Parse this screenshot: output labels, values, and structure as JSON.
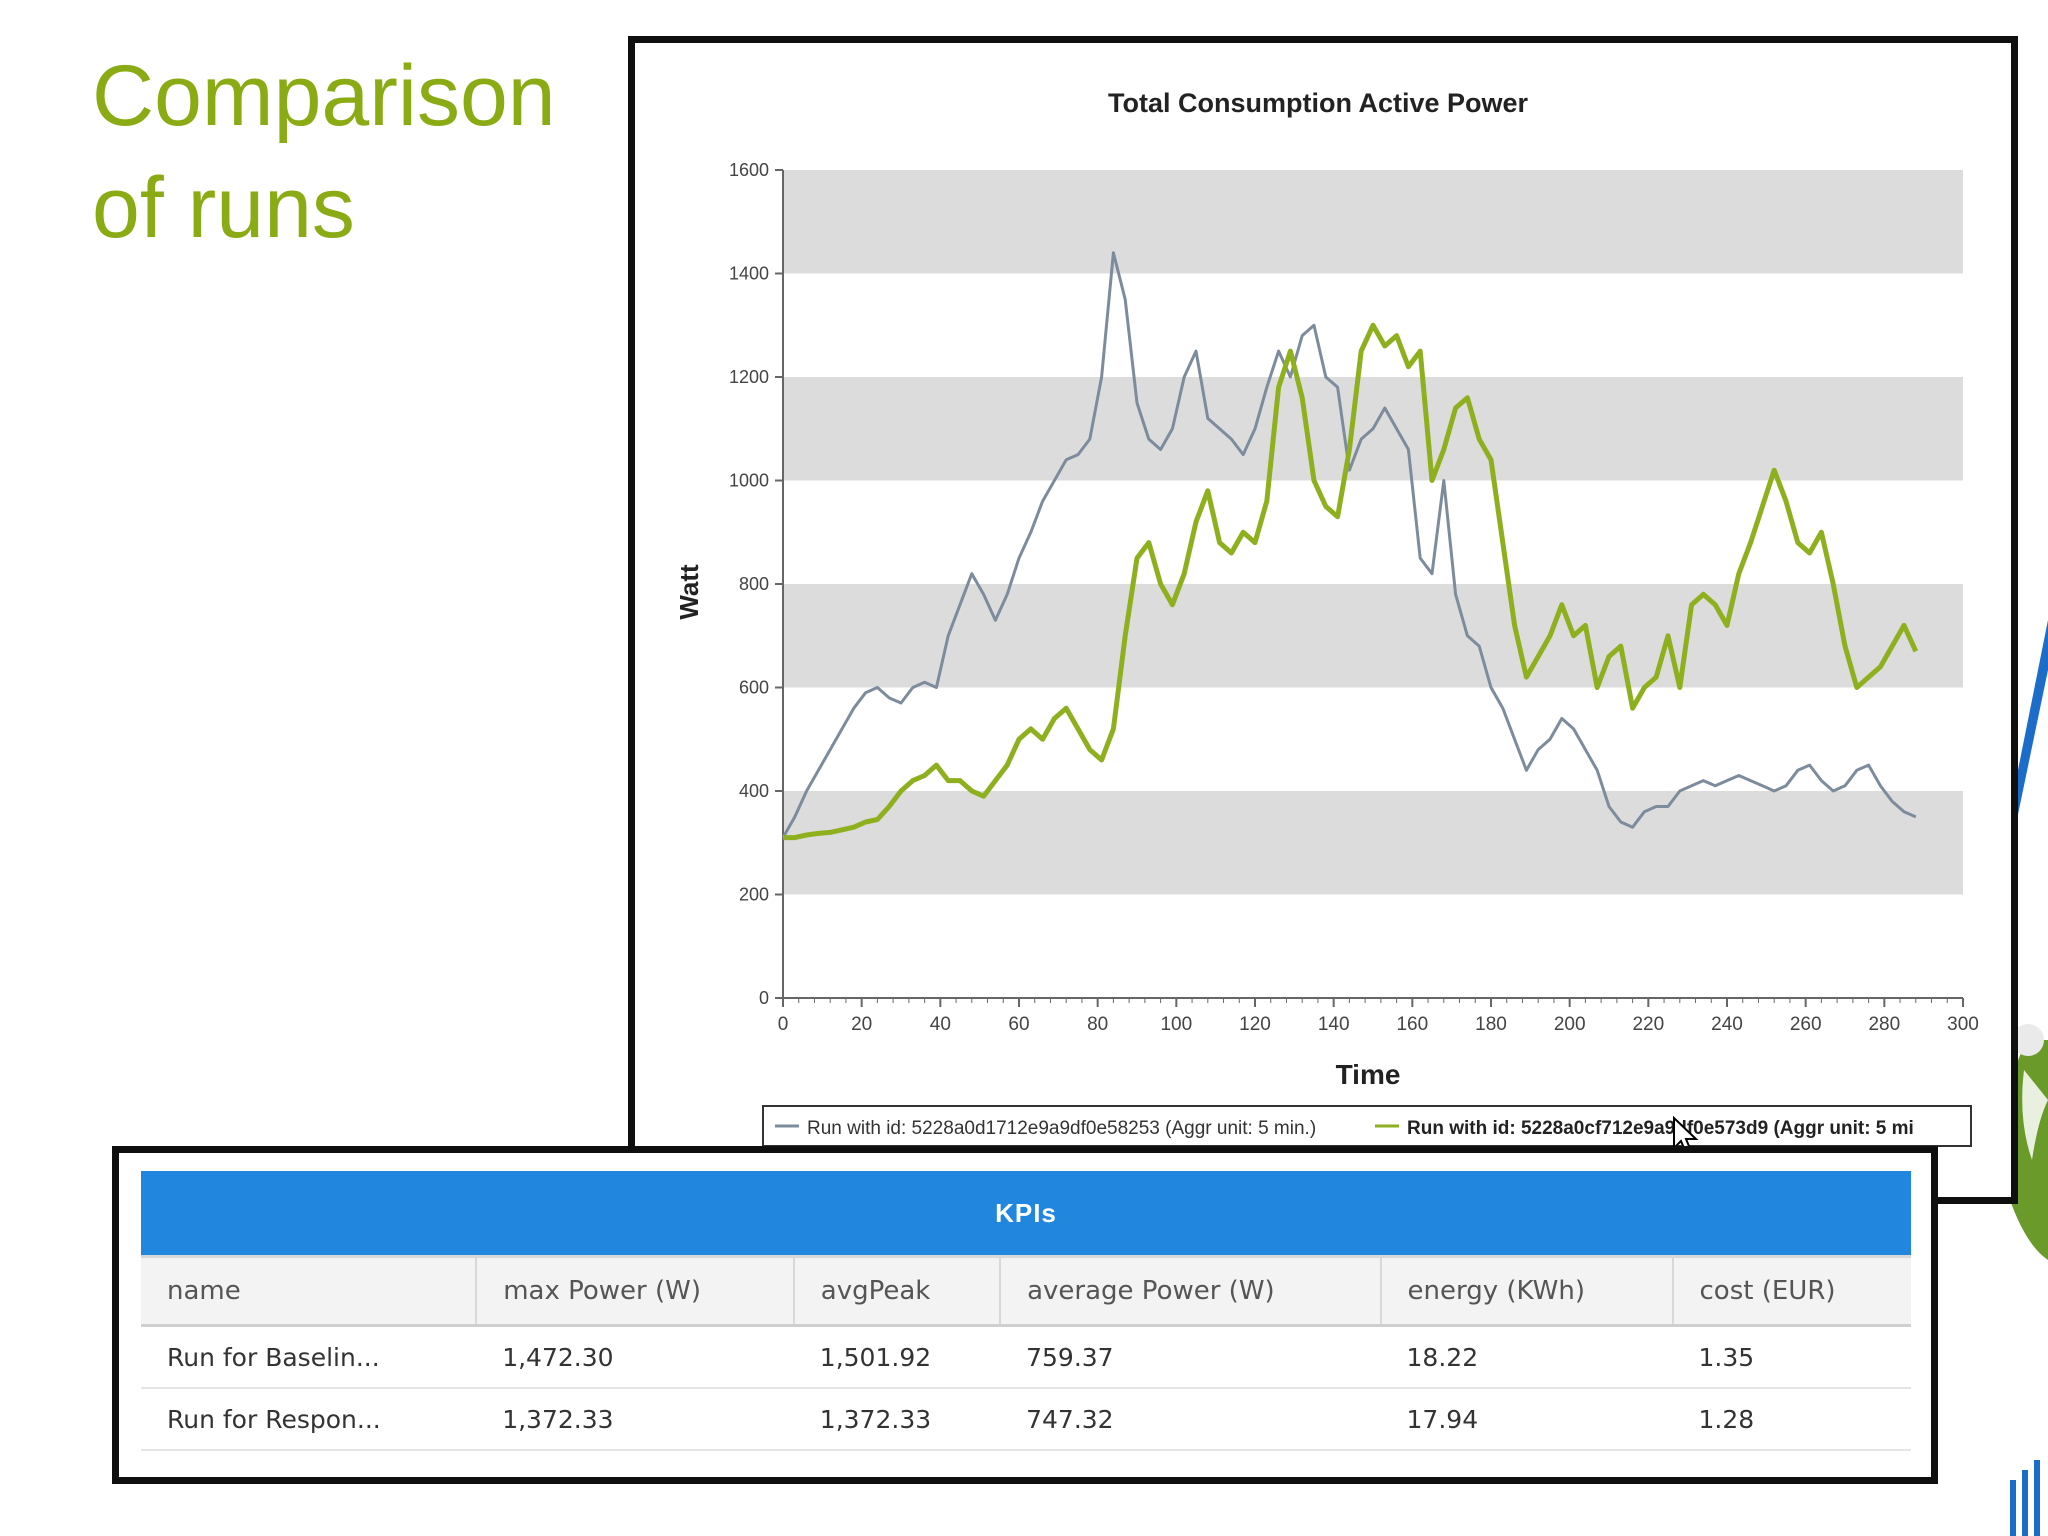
{
  "slide": {
    "title_line1": "Comparison",
    "title_line2": "of runs"
  },
  "colors": {
    "accent": "#8aab14",
    "table_header": "#2187de",
    "series_baseline": "#7d8c9c",
    "series_response": "#8fb01e"
  },
  "chart_data": {
    "type": "line",
    "title": "Total Consumption Active Power",
    "xlabel": "Time",
    "ylabel": "Watt",
    "xlim": [
      0,
      300
    ],
    "ylim": [
      0,
      1600
    ],
    "xticks": [
      "0",
      "20",
      "40",
      "60",
      "80",
      "100",
      "120",
      "140",
      "160",
      "180",
      "200",
      "220",
      "240",
      "260",
      "280",
      "300"
    ],
    "yticks": [
      "0",
      "200",
      "400",
      "600",
      "800",
      "1000",
      "1200",
      "1400",
      "1600"
    ],
    "grid": "alternating horizontal bands",
    "legend_position": "bottom",
    "series": [
      {
        "name": "Run with id: 5228a0d1712e9a9df0e58253 (Aggr unit: 5 min.)",
        "color": "#7d8c9c",
        "x": [
          0,
          3,
          6,
          9,
          12,
          15,
          18,
          21,
          24,
          27,
          30,
          33,
          36,
          39,
          42,
          45,
          48,
          51,
          54,
          57,
          60,
          63,
          66,
          69,
          72,
          75,
          78,
          81,
          84,
          87,
          90,
          93,
          96,
          99,
          102,
          105,
          108,
          111,
          114,
          117,
          120,
          123,
          126,
          129,
          132,
          135,
          138,
          141,
          144,
          147,
          150,
          153,
          156,
          159,
          162,
          165,
          168,
          171,
          174,
          177,
          180,
          183,
          186,
          189,
          192,
          195,
          198,
          201,
          204,
          207,
          210,
          213,
          216,
          219,
          222,
          225,
          228,
          231,
          234,
          237,
          240,
          243,
          246,
          249,
          252,
          255,
          258,
          261,
          264,
          267,
          270,
          273,
          276,
          279,
          282,
          285,
          288
        ],
        "y": [
          310,
          350,
          400,
          440,
          480,
          520,
          560,
          590,
          600,
          580,
          570,
          600,
          610,
          600,
          700,
          760,
          820,
          780,
          730,
          780,
          850,
          900,
          960,
          1000,
          1040,
          1050,
          1080,
          1200,
          1440,
          1350,
          1150,
          1080,
          1060,
          1100,
          1200,
          1250,
          1120,
          1100,
          1080,
          1050,
          1100,
          1180,
          1250,
          1200,
          1280,
          1300,
          1200,
          1180,
          1020,
          1080,
          1100,
          1140,
          1100,
          1060,
          850,
          820,
          1000,
          780,
          700,
          680,
          600,
          560,
          500,
          440,
          480,
          500,
          540,
          520,
          480,
          440,
          370,
          340,
          330,
          360,
          370,
          370,
          400,
          410,
          420,
          410,
          420,
          430,
          420,
          410,
          400,
          410,
          440,
          450,
          420,
          400,
          410,
          440,
          450,
          410,
          380,
          360,
          350
        ]
      },
      {
        "name": "Run with id: 5228a0cf712e9a9df0e573d9 (Aggr unit: 5 mi",
        "color": "#8fb01e",
        "x": [
          0,
          3,
          6,
          9,
          12,
          15,
          18,
          21,
          24,
          27,
          30,
          33,
          36,
          39,
          42,
          45,
          48,
          51,
          54,
          57,
          60,
          63,
          66,
          69,
          72,
          75,
          78,
          81,
          84,
          87,
          90,
          93,
          96,
          99,
          102,
          105,
          108,
          111,
          114,
          117,
          120,
          123,
          126,
          129,
          132,
          135,
          138,
          141,
          144,
          147,
          150,
          153,
          156,
          159,
          162,
          165,
          168,
          171,
          174,
          177,
          180,
          183,
          186,
          189,
          192,
          195,
          198,
          201,
          204,
          207,
          210,
          213,
          216,
          219,
          222,
          225,
          228,
          231,
          234,
          237,
          240,
          243,
          246,
          249,
          252,
          255,
          258,
          261,
          264,
          267,
          270,
          273,
          276,
          279,
          282,
          285,
          288
        ],
        "y": [
          310,
          310,
          315,
          318,
          320,
          325,
          330,
          340,
          345,
          370,
          400,
          420,
          430,
          450,
          420,
          420,
          400,
          390,
          420,
          450,
          500,
          520,
          500,
          540,
          560,
          520,
          480,
          460,
          520,
          700,
          850,
          880,
          800,
          760,
          820,
          920,
          980,
          880,
          860,
          900,
          880,
          960,
          1180,
          1250,
          1160,
          1000,
          950,
          930,
          1060,
          1250,
          1300,
          1260,
          1280,
          1220,
          1250,
          1000,
          1060,
          1140,
          1160,
          1080,
          1040,
          880,
          720,
          620,
          660,
          700,
          760,
          700,
          720,
          600,
          660,
          680,
          560,
          600,
          620,
          700,
          600,
          760,
          780,
          760,
          720,
          820,
          880,
          950,
          1020,
          960,
          880,
          860,
          900,
          800,
          680,
          600,
          620,
          640,
          680,
          720,
          670
        ]
      }
    ]
  },
  "legend": {
    "baseline": "Run with id: 5228a0d1712e9a9df0e58253 (Aggr unit: 5 min.)",
    "response": "Run with id: 5228a0cf712e9a9df0e573d9 (Aggr unit: 5 mi"
  },
  "kpi": {
    "title": "KPIs",
    "columns": [
      "name",
      "max Power (W)",
      "avgPeak",
      "average Power (W)",
      "energy (KWh)",
      "cost (EUR)"
    ],
    "rows": [
      [
        "Run for Baselin...",
        "1,472.30",
        "1,501.92",
        "759.37",
        "18.22",
        "1.35"
      ],
      [
        "Run for Respon...",
        "1,372.33",
        "1,372.33",
        "747.32",
        "17.94",
        "1.28"
      ]
    ]
  }
}
